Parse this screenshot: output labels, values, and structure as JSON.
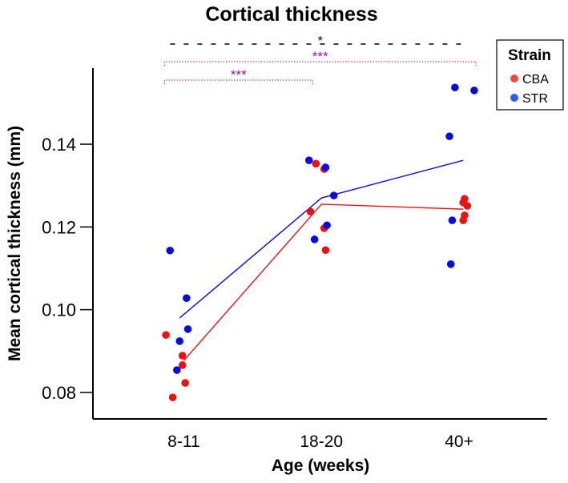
{
  "chart_data": {
    "type": "scatter",
    "title": "Cortical thickness",
    "xlabel": "Age (weeks)",
    "ylabel": "Mean cortical thickness (mm)",
    "categories": [
      "8-11",
      "18-20",
      "40+"
    ],
    "yticks": [
      0.08,
      0.1,
      0.12,
      0.14
    ],
    "ytick_labels": [
      "0.08",
      "0.10",
      "0.12",
      "0.14"
    ],
    "ylim": [
      0.0736,
      0.1584
    ],
    "xlim": [
      -0.66,
      2.64
    ],
    "grid": false,
    "legend": {
      "title": "Strain",
      "placement": "top-right"
    },
    "series": [
      {
        "name": "CBA",
        "color": "#ee1111",
        "legend_color": "#f04a3a",
        "points": [
          {
            "x": -0.13,
            "y": 0.0939
          },
          {
            "x": -0.01,
            "y": 0.0889
          },
          {
            "x": -0.01,
            "y": 0.0866
          },
          {
            "x": 0.01,
            "y": 0.0823
          },
          {
            "x": -0.08,
            "y": 0.0788
          },
          {
            "x": 0.96,
            "y": 0.1353
          },
          {
            "x": 1.02,
            "y": 0.134
          },
          {
            "x": 0.92,
            "y": 0.1237
          },
          {
            "x": 1.02,
            "y": 0.1197
          },
          {
            "x": 1.03,
            "y": 0.1144
          },
          {
            "x": 2.04,
            "y": 0.1268
          },
          {
            "x": 2.06,
            "y": 0.1251
          },
          {
            "x": 2.03,
            "y": 0.1259
          },
          {
            "x": 2.04,
            "y": 0.1228
          },
          {
            "x": 2.03,
            "y": 0.1216
          }
        ],
        "mean_line": [
          {
            "x": 0.0,
            "y": 0.0877
          },
          {
            "x": 1.0,
            "y": 0.1255
          },
          {
            "x": 2.03,
            "y": 0.1243
          }
        ]
      },
      {
        "name": "STR",
        "color": "#0a0ae0",
        "legend_color": "#2e5ff0",
        "points": [
          {
            "x": -0.1,
            "y": 0.1143
          },
          {
            "x": 0.02,
            "y": 0.1028
          },
          {
            "x": 0.03,
            "y": 0.0953
          },
          {
            "x": -0.03,
            "y": 0.0924
          },
          {
            "x": -0.05,
            "y": 0.0854
          },
          {
            "x": 0.91,
            "y": 0.1361
          },
          {
            "x": 1.03,
            "y": 0.1344
          },
          {
            "x": 1.09,
            "y": 0.1276
          },
          {
            "x": 1.04,
            "y": 0.1204
          },
          {
            "x": 0.95,
            "y": 0.117
          },
          {
            "x": 1.97,
            "y": 0.1537
          },
          {
            "x": 2.11,
            "y": 0.153
          },
          {
            "x": 1.93,
            "y": 0.1419
          },
          {
            "x": 1.95,
            "y": 0.1216
          },
          {
            "x": 1.94,
            "y": 0.111
          }
        ],
        "mean_line": [
          {
            "x": -0.03,
            "y": 0.098
          },
          {
            "x": 1.0,
            "y": 0.127
          },
          {
            "x": 2.03,
            "y": 0.1361
          }
        ]
      }
    ],
    "annotations": [
      {
        "label": "*",
        "from": "8-11",
        "to": "40+",
        "style": "dashed",
        "color": "#000000"
      },
      {
        "label": "***",
        "from": "8-11",
        "to": "40+",
        "style": "dotted",
        "color": "#9b189b"
      },
      {
        "label": "***",
        "from": "8-11",
        "to": "18-20",
        "style": "dotted",
        "color": "#9b189b"
      }
    ]
  }
}
